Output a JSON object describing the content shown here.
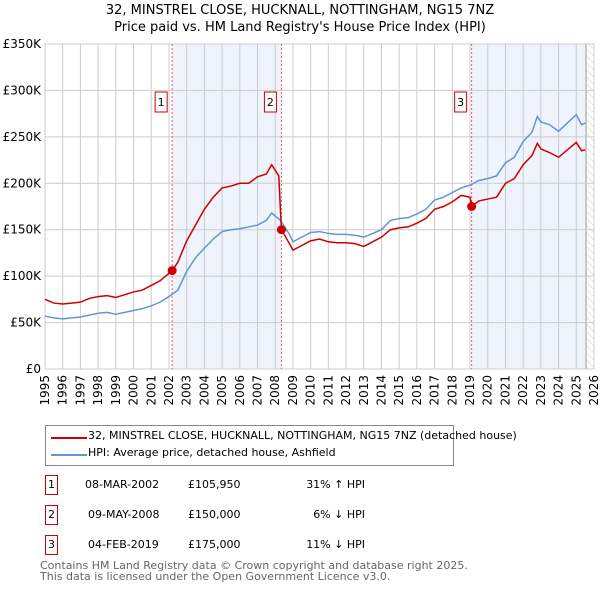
{
  "title_line1": "32, MINSTREL CLOSE, HUCKNALL, NOTTINGHAM, NG15 7NZ",
  "title_line2": "Price paid vs. HM Land Registry's House Price Index (HPI)",
  "chart_data": {
    "type": "line",
    "xlim": [
      1995,
      2026
    ],
    "ylim": [
      0,
      350000
    ],
    "y_ticks": [
      0,
      50000,
      100000,
      150000,
      200000,
      250000,
      300000,
      350000
    ],
    "y_tick_labels": [
      "£0",
      "£50K",
      "£100K",
      "£150K",
      "£200K",
      "£250K",
      "£300K",
      "£350K"
    ],
    "x_ticks": [
      1995,
      1996,
      1997,
      1998,
      1999,
      2000,
      2001,
      2002,
      2003,
      2004,
      2005,
      2006,
      2007,
      2008,
      2009,
      2010,
      2011,
      2012,
      2013,
      2014,
      2015,
      2016,
      2017,
      2018,
      2019,
      2020,
      2021,
      2022,
      2023,
      2024,
      2025,
      2026
    ],
    "grid": true,
    "colors": {
      "property": "#cc0000",
      "hpi": "#6495d2",
      "shade": "#eef3fc"
    },
    "shaded_ranges": [
      [
        2002.18,
        2008.35
      ],
      [
        2019.09,
        2025.55
      ]
    ],
    "hatched_from": 2025.55,
    "series": [
      {
        "name": "32, MINSTREL CLOSE, HUCKNALL, NOTTINGHAM, NG15 7NZ (detached house)",
        "color": "#cc0000",
        "points": [
          [
            1995,
            75000
          ],
          [
            1995.5,
            71000
          ],
          [
            1996,
            70000
          ],
          [
            1996.5,
            71000
          ],
          [
            1997,
            72000
          ],
          [
            1997.5,
            76000
          ],
          [
            1998,
            78000
          ],
          [
            1998.5,
            79000
          ],
          [
            1999,
            77000
          ],
          [
            1999.5,
            80000
          ],
          [
            2000,
            83000
          ],
          [
            2000.5,
            85000
          ],
          [
            2001,
            90000
          ],
          [
            2001.5,
            95000
          ],
          [
            2002,
            103000
          ],
          [
            2002.18,
            105950
          ],
          [
            2002.5,
            115000
          ],
          [
            2003,
            138000
          ],
          [
            2003.5,
            155000
          ],
          [
            2004,
            172000
          ],
          [
            2004.5,
            185000
          ],
          [
            2005,
            195000
          ],
          [
            2005.5,
            197000
          ],
          [
            2006,
            200000
          ],
          [
            2006.5,
            200000
          ],
          [
            2007,
            207000
          ],
          [
            2007.5,
            210000
          ],
          [
            2007.8,
            220000
          ],
          [
            2008.2,
            208000
          ],
          [
            2008.35,
            150000
          ],
          [
            2008.8,
            135000
          ],
          [
            2009,
            128000
          ],
          [
            2009.5,
            133000
          ],
          [
            2010,
            138000
          ],
          [
            2010.5,
            140000
          ],
          [
            2011,
            137000
          ],
          [
            2011.5,
            136000
          ],
          [
            2012,
            136000
          ],
          [
            2012.5,
            135000
          ],
          [
            2013,
            132000
          ],
          [
            2013.5,
            137000
          ],
          [
            2014,
            142000
          ],
          [
            2014.5,
            150000
          ],
          [
            2015,
            152000
          ],
          [
            2015.5,
            153000
          ],
          [
            2016,
            157000
          ],
          [
            2016.5,
            162000
          ],
          [
            2017,
            172000
          ],
          [
            2017.5,
            175000
          ],
          [
            2018,
            180000
          ],
          [
            2018.5,
            187000
          ],
          [
            2019,
            185000
          ],
          [
            2019.09,
            175000
          ],
          [
            2019.5,
            181000
          ],
          [
            2020,
            183000
          ],
          [
            2020.5,
            185000
          ],
          [
            2021,
            200000
          ],
          [
            2021.5,
            205000
          ],
          [
            2022,
            220000
          ],
          [
            2022.5,
            230000
          ],
          [
            2022.8,
            243000
          ],
          [
            2023,
            237000
          ],
          [
            2023.5,
            233000
          ],
          [
            2024,
            228000
          ],
          [
            2024.5,
            236000
          ],
          [
            2025,
            244000
          ],
          [
            2025.3,
            235000
          ],
          [
            2025.5,
            236000
          ]
        ]
      },
      {
        "name": "HPI: Average price, detached house, Ashfield",
        "color": "#6495d2",
        "points": [
          [
            1995,
            57000
          ],
          [
            1995.5,
            55000
          ],
          [
            1996,
            54000
          ],
          [
            1996.5,
            55000
          ],
          [
            1997,
            56000
          ],
          [
            1997.5,
            58000
          ],
          [
            1998,
            60000
          ],
          [
            1998.5,
            61000
          ],
          [
            1999,
            59000
          ],
          [
            1999.5,
            61000
          ],
          [
            2000,
            63000
          ],
          [
            2000.5,
            65000
          ],
          [
            2001,
            68000
          ],
          [
            2001.5,
            72000
          ],
          [
            2002,
            78000
          ],
          [
            2002.5,
            85000
          ],
          [
            2003,
            105000
          ],
          [
            2003.5,
            120000
          ],
          [
            2004,
            130000
          ],
          [
            2004.5,
            140000
          ],
          [
            2005,
            148000
          ],
          [
            2005.5,
            150000
          ],
          [
            2006,
            151000
          ],
          [
            2006.5,
            153000
          ],
          [
            2007,
            155000
          ],
          [
            2007.5,
            160000
          ],
          [
            2007.8,
            168000
          ],
          [
            2008.3,
            160000
          ],
          [
            2008.8,
            145000
          ],
          [
            2009,
            137000
          ],
          [
            2009.5,
            142000
          ],
          [
            2010,
            147000
          ],
          [
            2010.5,
            148000
          ],
          [
            2011,
            146000
          ],
          [
            2011.5,
            145000
          ],
          [
            2012,
            145000
          ],
          [
            2012.5,
            144000
          ],
          [
            2013,
            142000
          ],
          [
            2013.5,
            146000
          ],
          [
            2014,
            150000
          ],
          [
            2014.5,
            160000
          ],
          [
            2015,
            162000
          ],
          [
            2015.5,
            163000
          ],
          [
            2016,
            167000
          ],
          [
            2016.5,
            172000
          ],
          [
            2017,
            182000
          ],
          [
            2017.5,
            185000
          ],
          [
            2018,
            190000
          ],
          [
            2018.5,
            195000
          ],
          [
            2019,
            198000
          ],
          [
            2019.5,
            203000
          ],
          [
            2020,
            205000
          ],
          [
            2020.5,
            208000
          ],
          [
            2021,
            222000
          ],
          [
            2021.5,
            228000
          ],
          [
            2022,
            245000
          ],
          [
            2022.5,
            255000
          ],
          [
            2022.8,
            272000
          ],
          [
            2023,
            266000
          ],
          [
            2023.5,
            263000
          ],
          [
            2024,
            256000
          ],
          [
            2024.5,
            265000
          ],
          [
            2025,
            274000
          ],
          [
            2025.3,
            263000
          ],
          [
            2025.5,
            265000
          ]
        ]
      }
    ],
    "sales": [
      {
        "label": "1",
        "x": 2002.18,
        "y": 105950
      },
      {
        "label": "2",
        "x": 2008.35,
        "y": 150000
      },
      {
        "label": "3",
        "x": 2019.09,
        "y": 175000
      }
    ]
  },
  "legend": {
    "property": "32, MINSTREL CLOSE, HUCKNALL, NOTTINGHAM, NG15 7NZ (detached house)",
    "hpi": "HPI: Average price, detached house, Ashfield"
  },
  "transactions": [
    {
      "num": "1",
      "date": "08-MAR-2002",
      "price": "£105,950",
      "hpi": "31% ↑ HPI"
    },
    {
      "num": "2",
      "date": "09-MAY-2008",
      "price": "£150,000",
      "hpi": "6% ↓ HPI"
    },
    {
      "num": "3",
      "date": "04-FEB-2019",
      "price": "£175,000",
      "hpi": "11% ↓ HPI"
    }
  ],
  "footer": {
    "line1": "Contains HM Land Registry data © Crown copyright and database right 2025.",
    "line2": "This data is licensed under the Open Government Licence v3.0."
  }
}
